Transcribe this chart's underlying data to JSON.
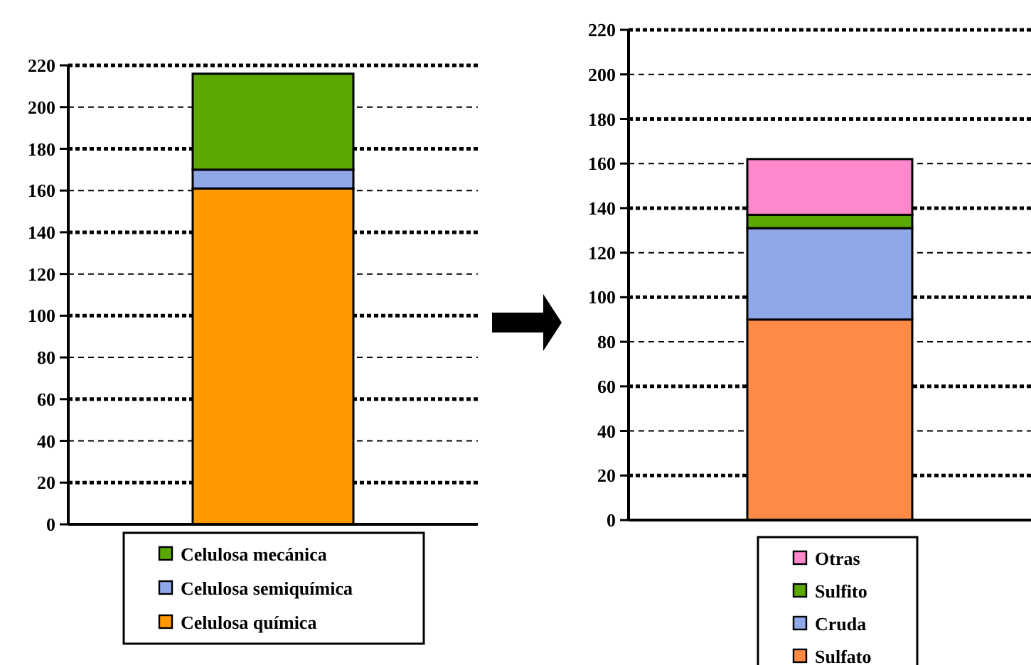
{
  "chart_data": [
    {
      "type": "bar",
      "stacked": true,
      "categories": [
        null
      ],
      "ylim": [
        0,
        220
      ],
      "yticks": [
        0,
        20,
        40,
        60,
        80,
        100,
        120,
        140,
        160,
        180,
        200,
        220
      ],
      "grid": "y",
      "legend": "bottom",
      "series": [
        {
          "name": "Celulosa química",
          "color": "#ff9900",
          "values": [
            161
          ]
        },
        {
          "name": "Celulosa semiquímica",
          "color": "#8fa8e8",
          "values": [
            9
          ]
        },
        {
          "name": "Celulosa mecánica",
          "color": "#5aa800",
          "values": [
            46
          ]
        }
      ]
    },
    {
      "type": "bar",
      "stacked": true,
      "categories": [
        null
      ],
      "ylim": [
        0,
        220
      ],
      "yticks": [
        0,
        20,
        40,
        60,
        80,
        100,
        120,
        140,
        160,
        180,
        200,
        220
      ],
      "grid": "y",
      "legend": "bottom",
      "series": [
        {
          "name": "Sulfato",
          "color": "#ff8a45",
          "values": [
            90
          ]
        },
        {
          "name": "Cruda",
          "color": "#8fa8e8",
          "values": [
            41
          ]
        },
        {
          "name": "Sulfito",
          "color": "#5aa800",
          "values": [
            6
          ]
        },
        {
          "name": "Otras",
          "color": "#ff88cc",
          "values": [
            25
          ]
        }
      ]
    }
  ]
}
